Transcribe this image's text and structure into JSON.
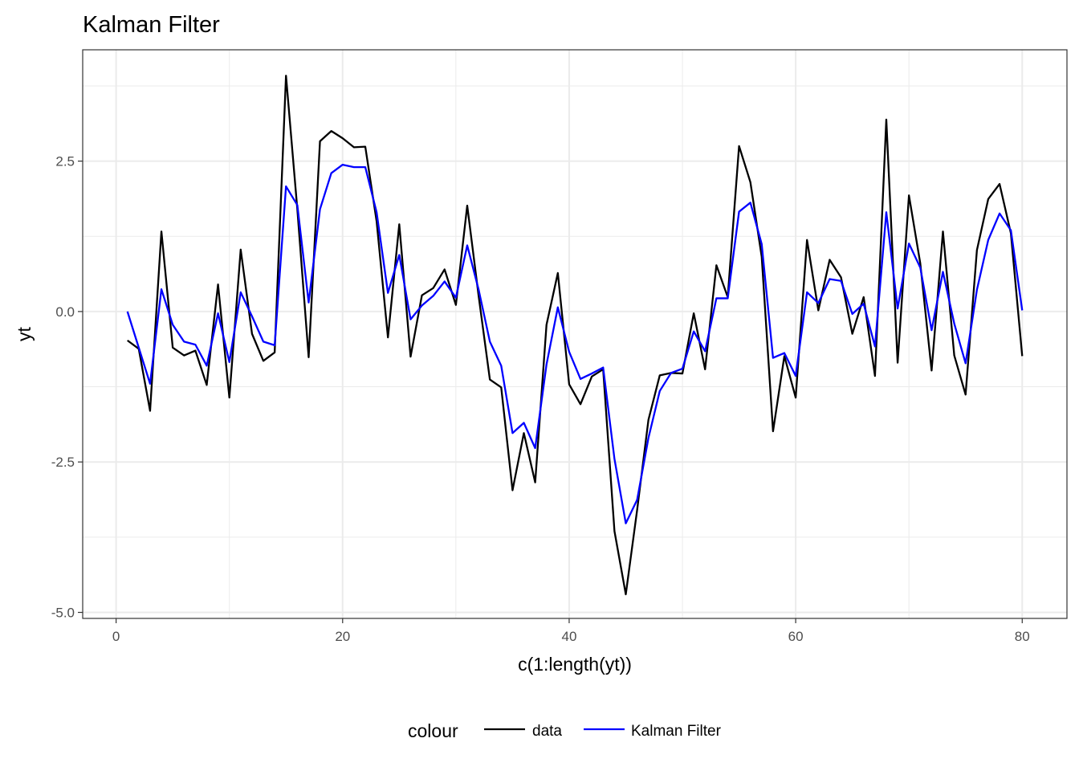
{
  "chart_data": {
    "type": "line",
    "title": "Kalman Filter",
    "xlabel": "c(1:length(yt))",
    "ylabel": "yt",
    "xlim": [
      -2.95,
      83.95
    ],
    "ylim": [
      -5.1,
      4.35
    ],
    "x_ticks": [
      0,
      20,
      40,
      60,
      80
    ],
    "x_tick_labels": [
      "0",
      "20",
      "40",
      "60",
      "80"
    ],
    "y_ticks": [
      -5.0,
      -2.5,
      0.0,
      2.5
    ],
    "y_tick_labels": [
      "-5.0",
      "-2.5",
      "0.0",
      "2.5"
    ],
    "x_minor": [
      10,
      30,
      50,
      70
    ],
    "y_minor": [
      -3.75,
      -1.25,
      1.25,
      3.75
    ],
    "grid": true,
    "legend": {
      "title": "colour",
      "position": "bottom"
    },
    "series": [
      {
        "name": "data",
        "color": "#000000",
        "x": [
          1,
          2,
          3,
          4,
          5,
          6,
          7,
          8,
          9,
          10,
          11,
          12,
          13,
          14,
          15,
          16,
          17,
          18,
          19,
          20,
          21,
          22,
          23,
          24,
          25,
          26,
          27,
          28,
          29,
          30,
          31,
          32,
          33,
          34,
          35,
          36,
          37,
          38,
          39,
          40,
          41,
          42,
          43,
          44,
          45,
          46,
          47,
          48,
          49,
          50,
          51,
          52,
          53,
          54,
          55,
          56,
          57,
          58,
          59,
          60,
          61,
          62,
          63,
          64,
          65,
          66,
          67,
          68,
          69,
          70,
          71,
          72,
          73,
          74,
          75,
          76,
          77,
          78,
          79,
          80
        ],
        "values": [
          -0.48,
          -0.62,
          -1.65,
          1.33,
          -0.6,
          -0.73,
          -0.65,
          -1.22,
          0.45,
          -1.43,
          1.03,
          -0.37,
          -0.82,
          -0.68,
          3.92,
          1.7,
          -0.76,
          2.83,
          3.0,
          2.88,
          2.73,
          2.74,
          1.5,
          -0.43,
          1.45,
          -0.75,
          0.27,
          0.39,
          0.7,
          0.11,
          1.76,
          0.27,
          -1.13,
          -1.26,
          -2.97,
          -2.02,
          -2.84,
          -0.22,
          0.64,
          -1.21,
          -1.54,
          -1.08,
          -0.96,
          -3.65,
          -4.7,
          -3.3,
          -1.8,
          -1.06,
          -1.02,
          -1.03,
          -0.03,
          -0.96,
          0.77,
          0.24,
          2.75,
          2.15,
          0.91,
          -1.99,
          -0.74,
          -1.43,
          1.19,
          0.02,
          0.86,
          0.57,
          -0.37,
          0.24,
          -1.07,
          3.19,
          -0.85,
          1.93,
          0.8,
          -0.98,
          1.33,
          -0.73,
          -1.38,
          1.02,
          1.87,
          2.12,
          1.3,
          -0.74
        ]
      },
      {
        "name": "Kalman Filter",
        "color": "#0000ff",
        "x": [
          1,
          2,
          3,
          4,
          5,
          6,
          7,
          8,
          9,
          10,
          11,
          12,
          13,
          14,
          15,
          16,
          17,
          18,
          19,
          20,
          21,
          22,
          23,
          24,
          25,
          26,
          27,
          28,
          29,
          30,
          31,
          32,
          33,
          34,
          35,
          36,
          37,
          38,
          39,
          40,
          41,
          42,
          43,
          44,
          45,
          46,
          47,
          48,
          49,
          50,
          51,
          52,
          53,
          54,
          55,
          56,
          57,
          58,
          59,
          60,
          61,
          62,
          63,
          64,
          65,
          66,
          67,
          68,
          69,
          70,
          71,
          72,
          73,
          74,
          75,
          76,
          77,
          78,
          79,
          80
        ],
        "values": [
          0.0,
          -0.6,
          -1.2,
          0.37,
          -0.22,
          -0.5,
          -0.55,
          -0.9,
          -0.03,
          -0.84,
          0.32,
          -0.08,
          -0.5,
          -0.56,
          2.08,
          1.77,
          0.15,
          1.7,
          2.3,
          2.44,
          2.4,
          2.4,
          1.65,
          0.31,
          0.94,
          -0.13,
          0.1,
          0.26,
          0.5,
          0.23,
          1.1,
          0.37,
          -0.5,
          -0.9,
          -2.02,
          -1.85,
          -2.27,
          -0.88,
          0.07,
          -0.67,
          -1.12,
          -1.03,
          -0.93,
          -2.45,
          -3.52,
          -3.13,
          -2.1,
          -1.32,
          -1.02,
          -0.95,
          -0.33,
          -0.66,
          0.22,
          0.22,
          1.66,
          1.81,
          1.12,
          -0.77,
          -0.69,
          -1.07,
          0.32,
          0.14,
          0.54,
          0.51,
          -0.04,
          0.13,
          -0.58,
          1.65,
          0.05,
          1.13,
          0.73,
          -0.31,
          0.66,
          -0.2,
          -0.86,
          0.36,
          1.19,
          1.63,
          1.35,
          0.02
        ]
      }
    ]
  }
}
